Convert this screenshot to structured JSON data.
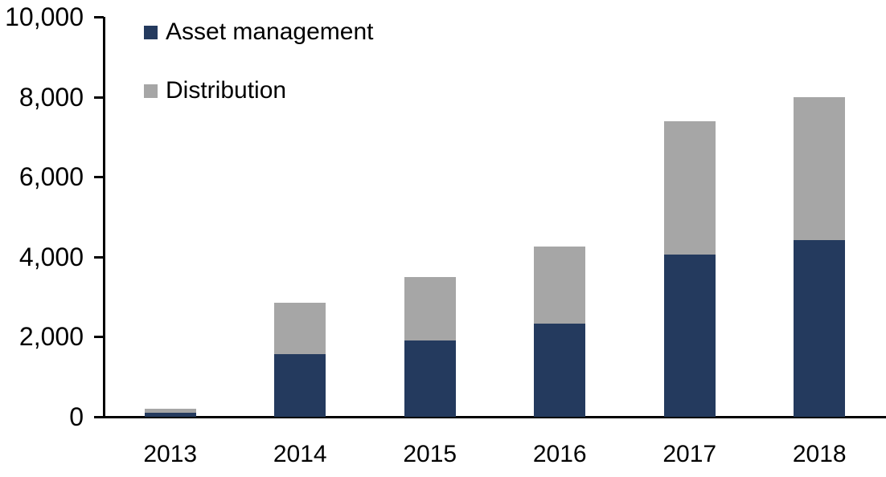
{
  "chart_data": {
    "type": "bar",
    "stacked": true,
    "title": "",
    "categories": [
      "2013",
      "2014",
      "2015",
      "2016",
      "2017",
      "2018"
    ],
    "series": [
      {
        "name": "Asset management",
        "color": "#243A5E",
        "values": [
          100,
          1570,
          1900,
          2320,
          4050,
          4420
        ]
      },
      {
        "name": "Distribution",
        "color": "#A6A6A6",
        "values": [
          100,
          1290,
          1600,
          1930,
          3340,
          3580
        ]
      }
    ],
    "totals": [
      200,
      2860,
      3500,
      4250,
      7390,
      8000
    ],
    "xlabel": "",
    "ylabel": "",
    "ylim": [
      0,
      10000
    ],
    "ytick_step": 2000,
    "ytick_labels": [
      "0",
      "2,000",
      "4,000",
      "6,000",
      "8,000",
      "10,000"
    ],
    "legend_position": "top-left",
    "grid": false,
    "axis_color": "#000000",
    "text_color": "#000000",
    "background": "#FFFFFF"
  }
}
